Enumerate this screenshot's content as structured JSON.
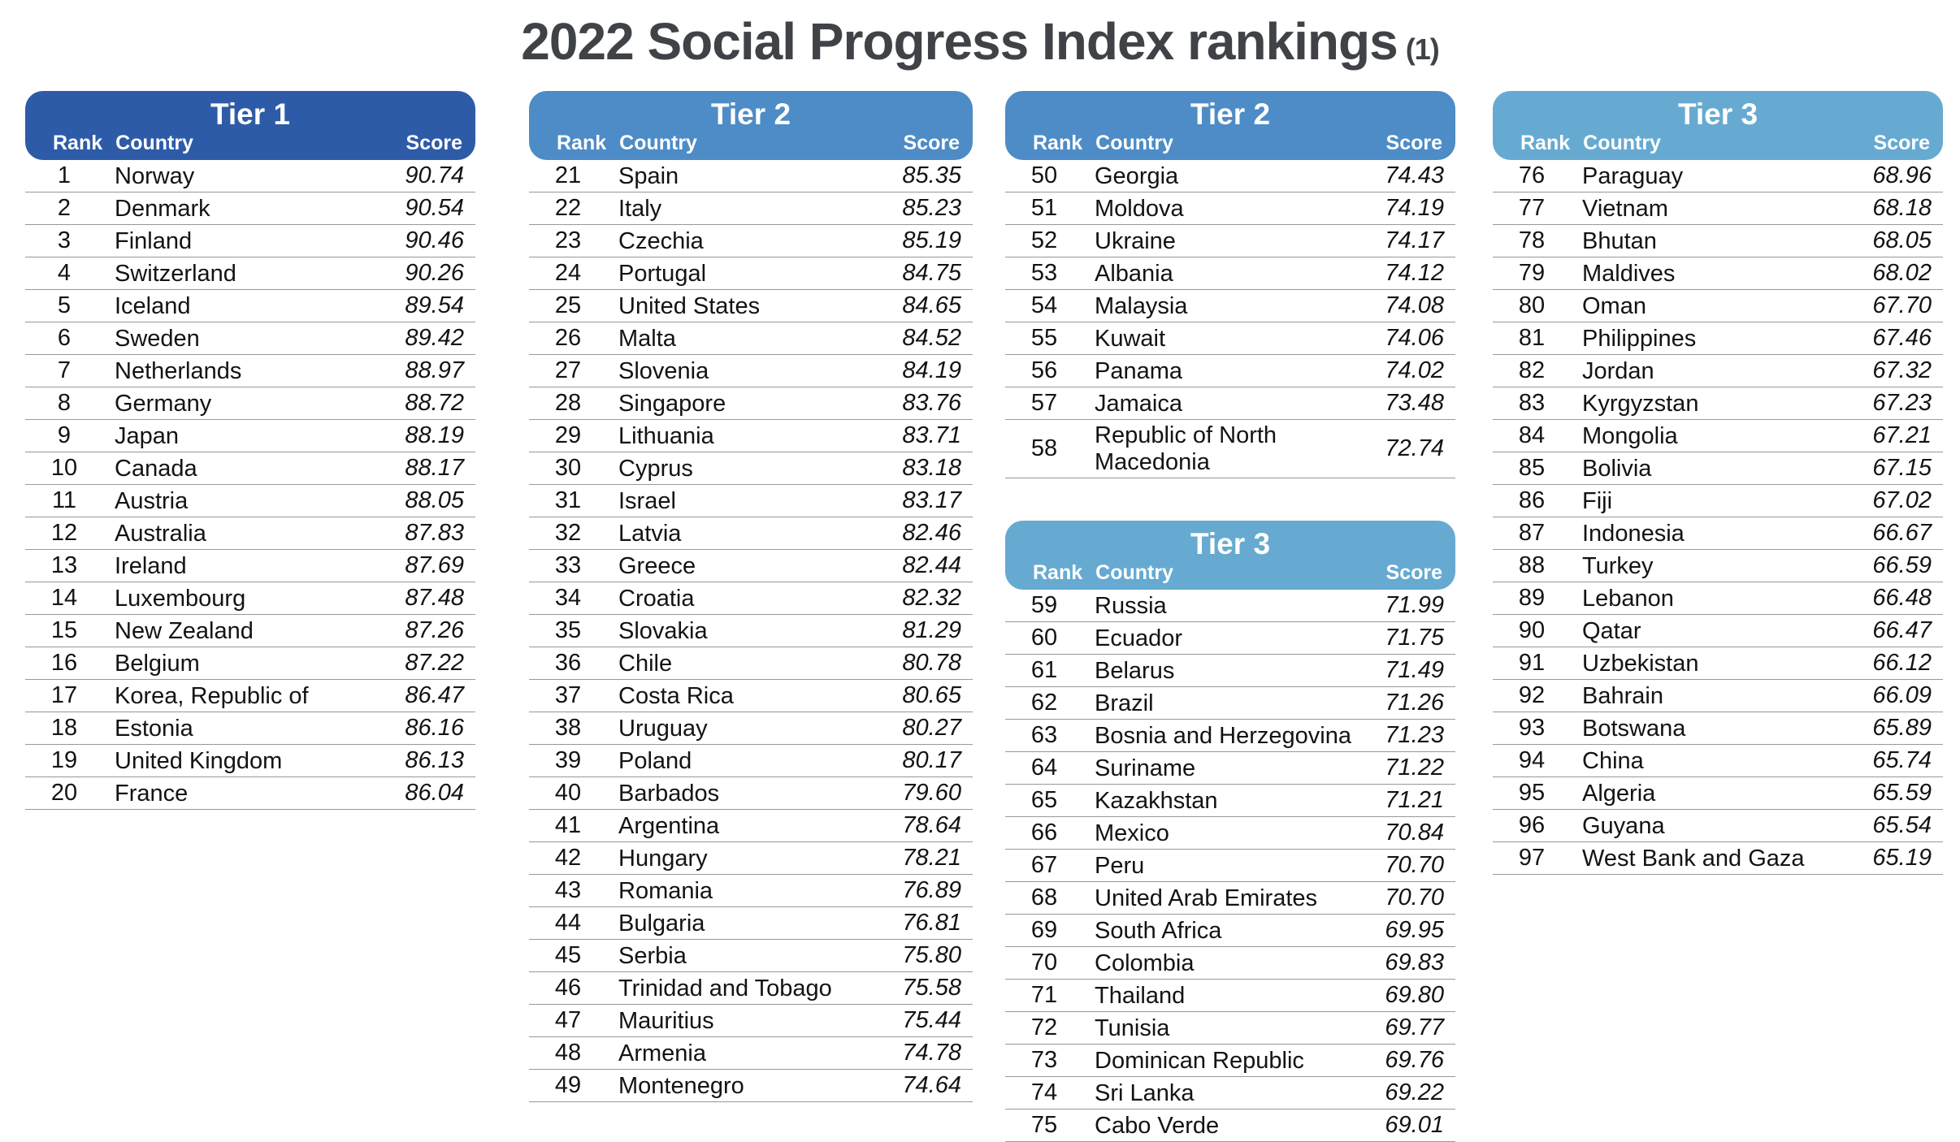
{
  "title": "2022 Social Progress Index rankings",
  "title_suffix": "(1)",
  "colors": {
    "tier1": "#2e5ba8",
    "tier2": "#4d8cc6",
    "tier3": "#66aad2",
    "title_text": "#3f4347",
    "row_divider": "#98989b"
  },
  "chart_data": {
    "type": "table",
    "title": "2022 Social Progress Index rankings",
    "title_suffix": "(1)",
    "column_headers": {
      "rank": "Rank",
      "country": "Country",
      "score": "Score"
    },
    "tables": [
      {
        "tier_label": "Tier 1",
        "tier": "tier1",
        "column": 1,
        "rows": [
          [
            "1",
            "Norway",
            "90.74"
          ],
          [
            "2",
            "Denmark",
            "90.54"
          ],
          [
            "3",
            "Finland",
            "90.46"
          ],
          [
            "4",
            "Switzerland",
            "90.26"
          ],
          [
            "5",
            "Iceland",
            "89.54"
          ],
          [
            "6",
            "Sweden",
            "89.42"
          ],
          [
            "7",
            "Netherlands",
            "88.97"
          ],
          [
            "8",
            "Germany",
            "88.72"
          ],
          [
            "9",
            "Japan",
            "88.19"
          ],
          [
            "10",
            "Canada",
            "88.17"
          ],
          [
            "11",
            "Austria",
            "88.05"
          ],
          [
            "12",
            "Australia",
            "87.83"
          ],
          [
            "13",
            "Ireland",
            "87.69"
          ],
          [
            "14",
            "Luxembourg",
            "87.48"
          ],
          [
            "15",
            "New Zealand",
            "87.26"
          ],
          [
            "16",
            "Belgium",
            "87.22"
          ],
          [
            "17",
            "Korea, Republic of",
            "86.47"
          ],
          [
            "18",
            "Estonia",
            "86.16"
          ],
          [
            "19",
            "United Kingdom",
            "86.13"
          ],
          [
            "20",
            "France",
            "86.04"
          ]
        ]
      },
      {
        "tier_label": "Tier 2",
        "tier": "tier2",
        "column": 2,
        "rows": [
          [
            "21",
            "Spain",
            "85.35"
          ],
          [
            "22",
            "Italy",
            "85.23"
          ],
          [
            "23",
            "Czechia",
            "85.19"
          ],
          [
            "24",
            "Portugal",
            "84.75"
          ],
          [
            "25",
            "United States",
            "84.65"
          ],
          [
            "26",
            "Malta",
            "84.52"
          ],
          [
            "27",
            "Slovenia",
            "84.19"
          ],
          [
            "28",
            "Singapore",
            "83.76"
          ],
          [
            "29",
            "Lithuania",
            "83.71"
          ],
          [
            "30",
            "Cyprus",
            "83.18"
          ],
          [
            "31",
            "Israel",
            "83.17"
          ],
          [
            "32",
            "Latvia",
            "82.46"
          ],
          [
            "33",
            "Greece",
            "82.44"
          ],
          [
            "34",
            "Croatia",
            "82.32"
          ],
          [
            "35",
            "Slovakia",
            "81.29"
          ],
          [
            "36",
            "Chile",
            "80.78"
          ],
          [
            "37",
            "Costa Rica",
            "80.65"
          ],
          [
            "38",
            "Uruguay",
            "80.27"
          ],
          [
            "39",
            "Poland",
            "80.17"
          ],
          [
            "40",
            "Barbados",
            "79.60"
          ],
          [
            "41",
            "Argentina",
            "78.64"
          ],
          [
            "42",
            "Hungary",
            "78.21"
          ],
          [
            "43",
            "Romania",
            "76.89"
          ],
          [
            "44",
            "Bulgaria",
            "76.81"
          ],
          [
            "45",
            "Serbia",
            "75.80"
          ],
          [
            "46",
            "Trinidad and Tobago",
            "75.58"
          ],
          [
            "47",
            "Mauritius",
            "75.44"
          ],
          [
            "48",
            "Armenia",
            "74.78"
          ],
          [
            "49",
            "Montenegro",
            "74.64"
          ]
        ]
      },
      {
        "tier_label": "Tier 2",
        "tier": "tier2",
        "column": 3,
        "rows": [
          [
            "50",
            "Georgia",
            "74.43"
          ],
          [
            "51",
            "Moldova",
            "74.19"
          ],
          [
            "52",
            "Ukraine",
            "74.17"
          ],
          [
            "53",
            "Albania",
            "74.12"
          ],
          [
            "54",
            "Malaysia",
            "74.08"
          ],
          [
            "55",
            "Kuwait",
            "74.06"
          ],
          [
            "56",
            "Panama",
            "74.02"
          ],
          [
            "57",
            "Jamaica",
            "73.48"
          ],
          [
            "58",
            "Republic of North Macedonia",
            "72.74"
          ]
        ]
      },
      {
        "tier_label": "Tier 3",
        "tier": "tier3",
        "column": 3,
        "rows": [
          [
            "59",
            "Russia",
            "71.99"
          ],
          [
            "60",
            "Ecuador",
            "71.75"
          ],
          [
            "61",
            "Belarus",
            "71.49"
          ],
          [
            "62",
            "Brazil",
            "71.26"
          ],
          [
            "63",
            "Bosnia and Herzegovina",
            "71.23"
          ],
          [
            "64",
            "Suriname",
            "71.22"
          ],
          [
            "65",
            "Kazakhstan",
            "71.21"
          ],
          [
            "66",
            "Mexico",
            "70.84"
          ],
          [
            "67",
            "Peru",
            "70.70"
          ],
          [
            "68",
            "United Arab Emirates",
            "70.70"
          ],
          [
            "69",
            "South Africa",
            "69.95"
          ],
          [
            "70",
            "Colombia",
            "69.83"
          ],
          [
            "71",
            "Thailand",
            "69.80"
          ],
          [
            "72",
            "Tunisia",
            "69.77"
          ],
          [
            "73",
            "Dominican Republic",
            "69.76"
          ],
          [
            "74",
            "Sri Lanka",
            "69.22"
          ],
          [
            "75",
            "Cabo Verde",
            "69.01"
          ]
        ]
      },
      {
        "tier_label": "Tier 3",
        "tier": "tier3",
        "column": 4,
        "rows": [
          [
            "76",
            "Paraguay",
            "68.96"
          ],
          [
            "77",
            "Vietnam",
            "68.18"
          ],
          [
            "78",
            "Bhutan",
            "68.05"
          ],
          [
            "79",
            "Maldives",
            "68.02"
          ],
          [
            "80",
            "Oman",
            "67.70"
          ],
          [
            "81",
            "Philippines",
            "67.46"
          ],
          [
            "82",
            "Jordan",
            "67.32"
          ],
          [
            "83",
            "Kyrgyzstan",
            "67.23"
          ],
          [
            "84",
            "Mongolia",
            "67.21"
          ],
          [
            "85",
            "Bolivia",
            "67.15"
          ],
          [
            "86",
            "Fiji",
            "67.02"
          ],
          [
            "87",
            "Indonesia",
            "66.67"
          ],
          [
            "88",
            "Turkey",
            "66.59"
          ],
          [
            "89",
            "Lebanon",
            "66.48"
          ],
          [
            "90",
            "Qatar",
            "66.47"
          ],
          [
            "91",
            "Uzbekistan",
            "66.12"
          ],
          [
            "92",
            "Bahrain",
            "66.09"
          ],
          [
            "93",
            "Botswana",
            "65.89"
          ],
          [
            "94",
            "China",
            "65.74"
          ],
          [
            "95",
            "Algeria",
            "65.59"
          ],
          [
            "96",
            "Guyana",
            "65.54"
          ],
          [
            "97",
            "West Bank and Gaza",
            "65.19"
          ]
        ]
      }
    ]
  }
}
